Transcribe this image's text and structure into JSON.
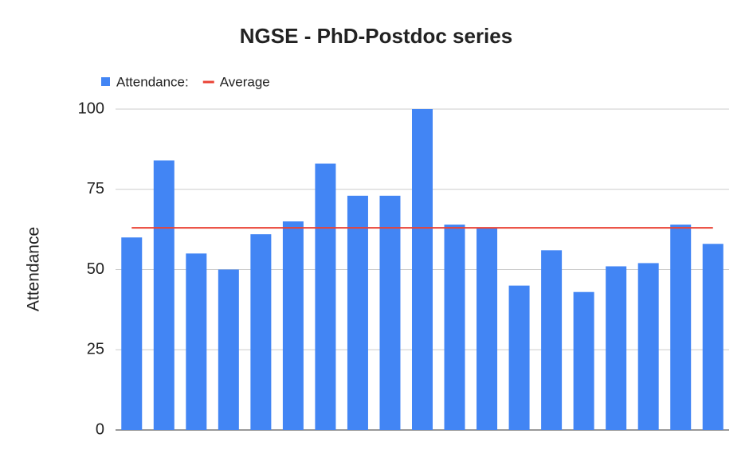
{
  "chart_data": {
    "type": "bar",
    "title": "NGSE - PhD-Postdoc series",
    "y_label": "Attendance",
    "categories": [
      null,
      null,
      null,
      null,
      null,
      null,
      null,
      null,
      null,
      null,
      null,
      null,
      null,
      null,
      null,
      null,
      null,
      null,
      null
    ],
    "series": [
      {
        "name": "Attendance:",
        "type": "bar",
        "color": "#4285f4",
        "values": [
          60,
          84,
          55,
          50,
          61,
          65,
          83,
          73,
          73,
          100,
          64,
          63,
          45,
          56,
          43,
          51,
          52,
          64,
          58
        ]
      },
      {
        "name": "Average",
        "type": "line",
        "color": "#ea4335",
        "values": [
          63,
          63,
          63,
          63,
          63,
          63,
          63,
          63,
          63,
          63,
          63,
          63,
          63,
          63,
          63,
          63,
          63,
          63,
          63
        ]
      }
    ],
    "ylim": [
      0,
      100
    ],
    "yticks": [
      0,
      25,
      50,
      75,
      100
    ],
    "grid": true,
    "legend": "top"
  }
}
